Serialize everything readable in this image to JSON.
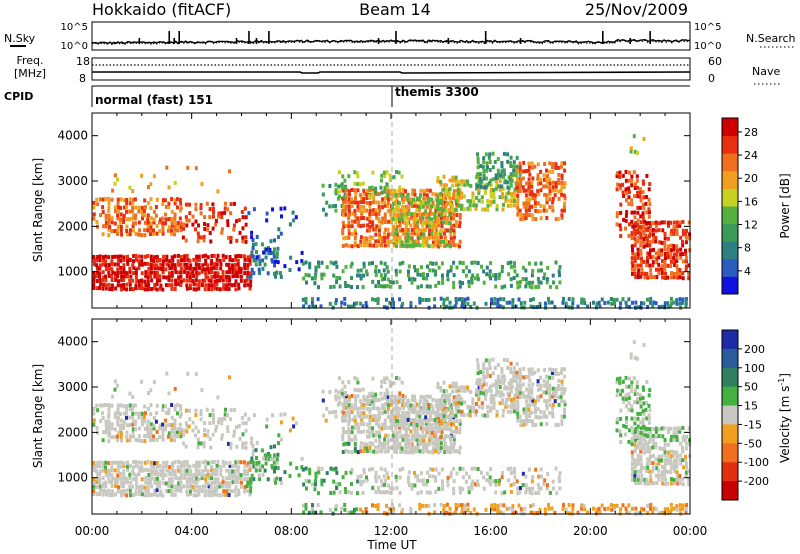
{
  "chart_data": {
    "type": "heatmap",
    "header": {
      "station": "Hokkaido (fitACF)",
      "beam": "Beam 14",
      "date": "25/Nov/2009"
    },
    "time_axis": {
      "label": "Time UT",
      "ticks": [
        "00:00",
        "04:00",
        "08:00",
        "12:00",
        "16:00",
        "20:00",
        "00:00"
      ],
      "range_hours": [
        0,
        24
      ]
    },
    "noise_panel": {
      "left_label": "N.Sky",
      "right_label": "N.Search",
      "left_ticks": [
        "10^5",
        "10^0"
      ],
      "right_ticks": [
        "10^5",
        "10^0"
      ]
    },
    "freq_panel": {
      "left_label_line1": "Freq.",
      "left_label_line2": "[MHz]",
      "left_ticks": [
        "18",
        "8"
      ],
      "right_label": "Nave",
      "right_ticks": [
        "60",
        "0"
      ]
    },
    "cpid_panel": {
      "label": "CPID",
      "modes": [
        {
          "name": "normal (fast) 151",
          "start_hour": 0
        },
        {
          "name": "themis 3300",
          "start_hour": 12
        }
      ]
    },
    "range_axis": {
      "label": "Slant Range [km]",
      "ticks": [
        "1000",
        "2000",
        "3000",
        "4000"
      ],
      "range_km": [
        200,
        4500
      ]
    },
    "power_panel": {
      "colorbar_label": "Power [dB]",
      "ticks": [
        "4",
        "8",
        "12",
        "16",
        "20",
        "24",
        "28"
      ]
    },
    "velocity_panel": {
      "colorbar_label_main": "Velocity [m s",
      "colorbar_label_exp": "-1",
      "colorbar_label_end": "]",
      "ticks": [
        "200",
        "100",
        "50",
        "15",
        "-15",
        "-50",
        "-100",
        "-200"
      ]
    },
    "power_colors": [
      "#1010e0",
      "#2a5cc0",
      "#2d8080",
      "#3a9a5a",
      "#55b040",
      "#c8d020",
      "#f0a020",
      "#f07020",
      "#e83010",
      "#d00000"
    ],
    "velocity_colors": [
      "#1c2ca8",
      "#2a5c9c",
      "#2e8060",
      "#44b040",
      "#c8c8c0",
      "#f0a020",
      "#f07020",
      "#e03010",
      "#c80000"
    ]
  }
}
